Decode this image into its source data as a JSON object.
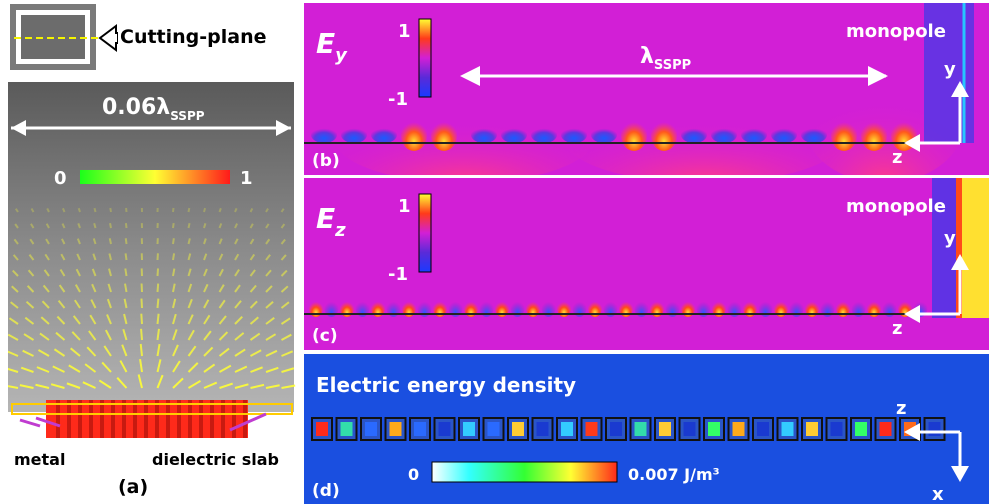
{
  "panel_a": {
    "cutting_plane_label": "Cutting-plane",
    "width_prefix": "0.06λ",
    "width_sub": "SSPP",
    "scale_min": "0",
    "scale_max": "1",
    "metal_label": "metal",
    "dielectric_label": "dielectric slab",
    "panel_tag": "(a)"
  },
  "panel_b": {
    "title": "E",
    "title_sub": "y",
    "cb_max": "1",
    "cb_min": "-1",
    "lambda_prefix": "λ",
    "lambda_sub": "SSPP",
    "source_label": "monopole",
    "axis_y": "y",
    "axis_z": "z",
    "panel_tag": "(b)"
  },
  "panel_c": {
    "title": "E",
    "title_sub": "z",
    "cb_max": "1",
    "cb_min": "-1",
    "source_label": "monopole",
    "axis_y": "y",
    "axis_z": "z",
    "panel_tag": "(c)"
  },
  "panel_d": {
    "title": "Electric energy density",
    "cb_min": "0",
    "cb_max": "0.007 J/m³",
    "axis_z": "z",
    "axis_x": "x",
    "panel_tag": "(d)"
  },
  "colors": {
    "field_background": "#d21fd6",
    "energy_background": "#1a4fe0",
    "arrow": "#ffff33",
    "metal": "#ff2a1a"
  }
}
